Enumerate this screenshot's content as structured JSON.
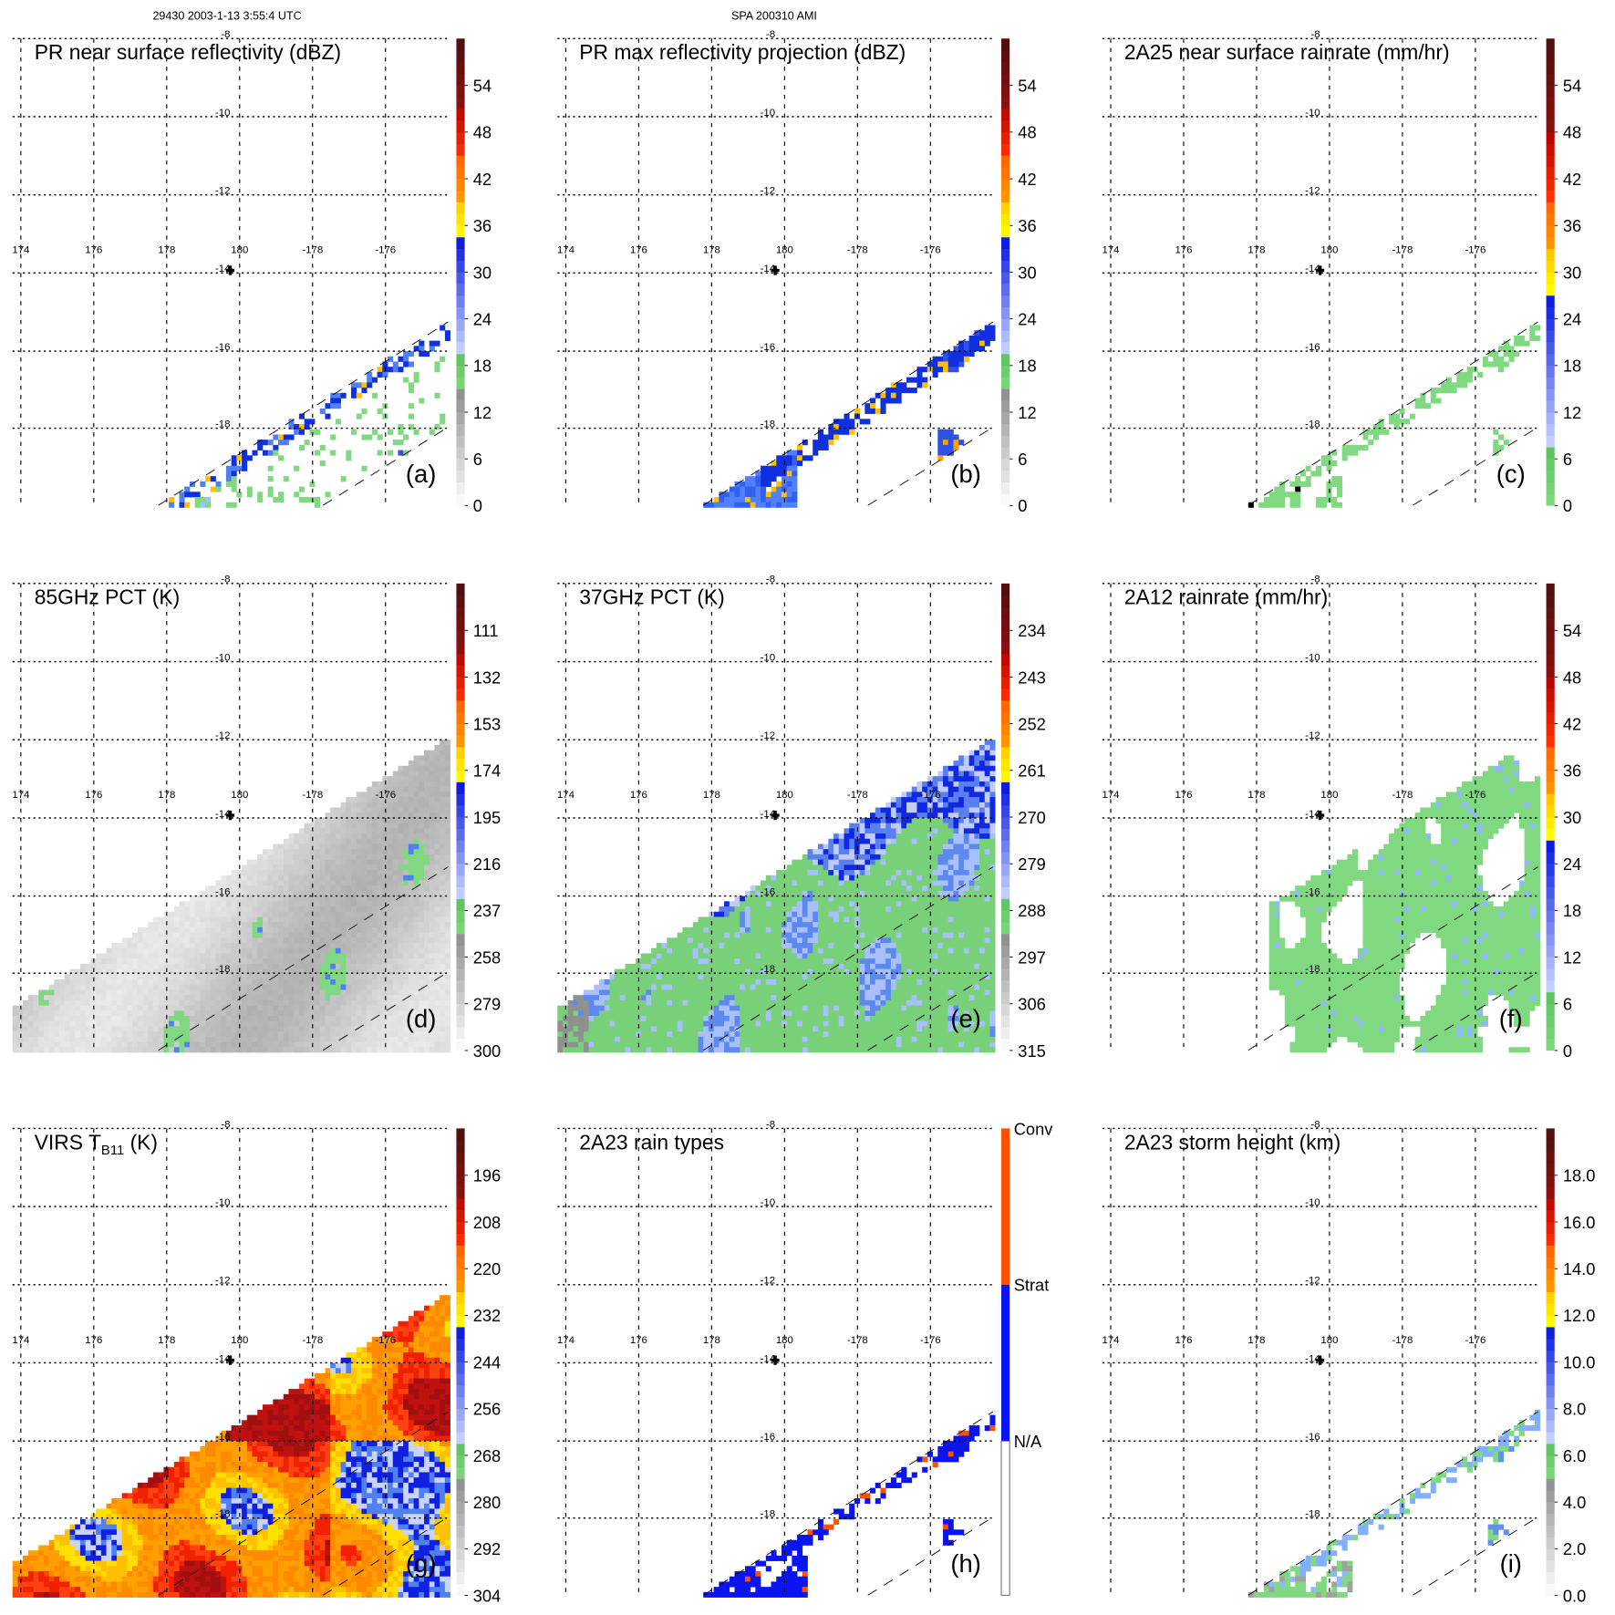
{
  "header": {
    "left": "29430 2003-1-13 3:55:4 UTC",
    "center": "SPA 200310 AMI"
  },
  "axes": {
    "lon_labels": [
      "174",
      "176",
      "178",
      "180",
      "-178",
      "-176"
    ],
    "lat_labels": [
      "-8",
      "-10",
      "-12",
      "-14",
      "-16",
      "-18"
    ]
  },
  "chart_data": [
    {
      "type": "heatmap",
      "id": "a",
      "title_pre": "PR near surface reflectivity (dBZ)",
      "title_sub": "",
      "title_post": "",
      "panel_label": "(a)",
      "colorbar_labels": [
        "54",
        "48",
        "42",
        "36",
        "30",
        "24",
        "18",
        "12",
        "6",
        "0"
      ],
      "scheme": "std",
      "field": "pr_sparse"
    },
    {
      "type": "heatmap",
      "id": "b",
      "title_pre": "PR max reflectivity projection (dBZ)",
      "title_sub": "",
      "title_post": "",
      "panel_label": "(b)",
      "colorbar_labels": [
        "54",
        "48",
        "42",
        "36",
        "30",
        "24",
        "18",
        "12",
        "6",
        "0"
      ],
      "scheme": "std",
      "field": "pr_dense"
    },
    {
      "type": "heatmap",
      "id": "c",
      "title_pre": "2A25 near surface rainrate (mm/hr)",
      "title_sub": "",
      "title_post": "",
      "panel_label": "(c)",
      "colorbar_labels": [
        "54",
        "48",
        "42",
        "36",
        "30",
        "24",
        "18",
        "12",
        "6",
        "0"
      ],
      "scheme": "rain",
      "field": "pr_green"
    },
    {
      "type": "heatmap",
      "id": "d",
      "title_pre": "85GHz PCT (K)",
      "title_sub": "",
      "title_post": "",
      "panel_label": "(d)",
      "colorbar_labels": [
        "111",
        "132",
        "153",
        "174",
        "195",
        "216",
        "237",
        "258",
        "279",
        "300"
      ],
      "scheme": "std",
      "field": "tmi_grey"
    },
    {
      "type": "heatmap",
      "id": "e",
      "title_pre": "37GHz PCT (K)",
      "title_sub": "",
      "title_post": "",
      "panel_label": "(e)",
      "colorbar_labels": [
        "234",
        "243",
        "252",
        "261",
        "270",
        "279",
        "288",
        "297",
        "306",
        "315"
      ],
      "scheme": "std",
      "field": "tmi_green_blue"
    },
    {
      "type": "heatmap",
      "id": "f",
      "title_pre": "2A12 rainrate (mm/hr)",
      "title_sub": "",
      "title_post": "",
      "panel_label": "(f)",
      "colorbar_labels": [
        "54",
        "48",
        "42",
        "36",
        "30",
        "24",
        "18",
        "12",
        "6",
        "0"
      ],
      "scheme": "rain",
      "field": "tmi_rain"
    },
    {
      "type": "heatmap",
      "id": "g",
      "title_pre": "VIRS T",
      "title_sub": "B11",
      "title_post": " (K)",
      "panel_label": "(g)",
      "colorbar_labels": [
        "196",
        "208",
        "220",
        "232",
        "244",
        "256",
        "268",
        "280",
        "292",
        "304"
      ],
      "scheme": "std",
      "field": "virs"
    },
    {
      "type": "heatmap",
      "id": "h",
      "title_pre": "2A23 rain types",
      "title_sub": "",
      "title_post": "",
      "panel_label": "(h)",
      "colorbar_labels": [
        "Conv",
        "Strat",
        "N/A"
      ],
      "scheme": "types",
      "field": "pr_types"
    },
    {
      "type": "heatmap",
      "id": "i",
      "title_pre": "2A23 storm height (km)",
      "title_sub": "",
      "title_post": "",
      "panel_label": "(i)",
      "colorbar_labels": [
        "18.0",
        "16.0",
        "14.0",
        "12.0",
        "10.0",
        "8.0",
        "6.0",
        "4.0",
        "2.0",
        "0.0"
      ],
      "scheme": "std",
      "field": "pr_height"
    }
  ]
}
